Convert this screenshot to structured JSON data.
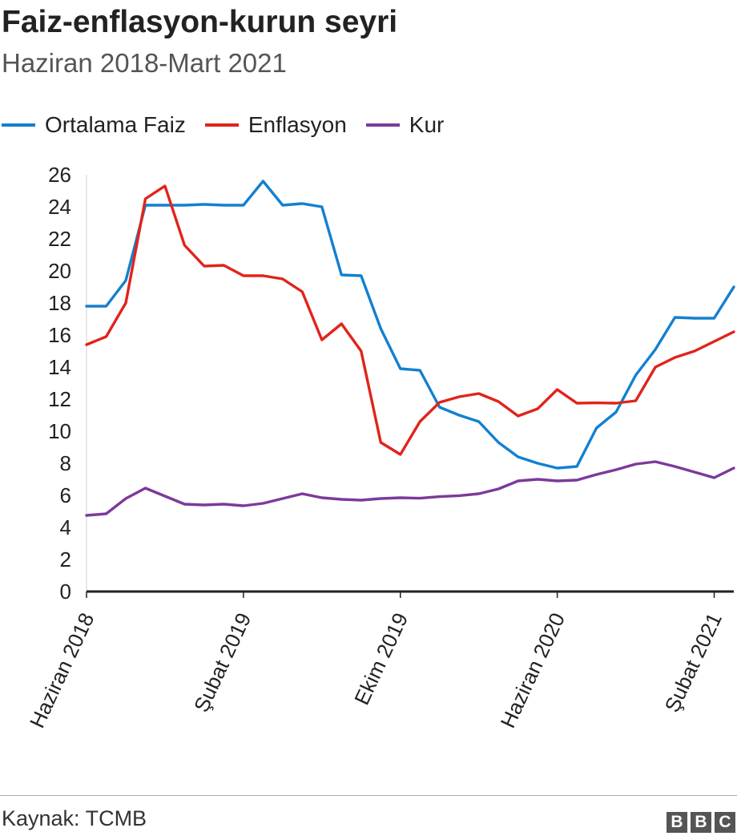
{
  "chart_data": {
    "type": "line",
    "title": "Faiz-enflasyon-kurun seyri",
    "subtitle": "Haziran 2018-Mart 2021",
    "ylim": [
      0,
      26
    ],
    "yticks": [
      0,
      2,
      4,
      6,
      8,
      10,
      12,
      14,
      16,
      18,
      20,
      22,
      24,
      26
    ],
    "xtick_labels": [
      "Haziran 2018",
      "Şubat 2019",
      "Ekim 2019",
      "Haziran 2020",
      "Şubat 2021"
    ],
    "xtick_indices": [
      0,
      8,
      16,
      24,
      32
    ],
    "x": [
      "Haziran 2018",
      "Temmuz 2018",
      "Ağustos 2018",
      "Eylül 2018",
      "Ekim 2018",
      "Kasım 2018",
      "Aralık 2018",
      "Ocak 2019",
      "Şubat 2019",
      "Mart 2019",
      "Nisan 2019",
      "Mayıs 2019",
      "Haziran 2019",
      "Temmuz 2019",
      "Ağustos 2019",
      "Eylül 2019",
      "Ekim 2019",
      "Kasım 2019",
      "Aralık 2019",
      "Ocak 2020",
      "Şubat 2020",
      "Mart 2020",
      "Nisan 2020",
      "Mayıs 2020",
      "Haziran 2020",
      "Temmuz 2020",
      "Ağustos 2020",
      "Eylül 2020",
      "Ekim 2020",
      "Kasım 2020",
      "Aralık 2020",
      "Ocak 2021",
      "Şubat 2021",
      "Mart 2021"
    ],
    "series": [
      {
        "name": "Ortalama Faiz",
        "color": "#1380d0",
        "values": [
          17.8,
          17.8,
          19.4,
          24.1,
          24.1,
          24.1,
          24.15,
          24.1,
          24.1,
          25.6,
          24.1,
          24.2,
          24.0,
          19.75,
          19.7,
          16.4,
          13.9,
          13.8,
          11.5,
          11.0,
          10.6,
          9.3,
          8.4,
          8.0,
          7.7,
          7.8,
          10.2,
          11.2,
          13.5,
          15.1,
          17.1,
          17.05,
          17.05,
          19.0
        ]
      },
      {
        "name": "Enflasyon",
        "color": "#e0241b",
        "values": [
          15.4,
          15.9,
          18.0,
          24.5,
          25.3,
          21.6,
          20.3,
          20.35,
          19.7,
          19.7,
          19.5,
          18.7,
          15.7,
          16.7,
          15.0,
          9.3,
          8.55,
          10.6,
          11.8,
          12.15,
          12.35,
          11.85,
          10.95,
          11.4,
          12.6,
          11.75,
          11.77,
          11.75,
          11.9,
          14.0,
          14.6,
          15.0,
          15.6,
          16.2
        ]
      },
      {
        "name": "Kur",
        "color": "#7c3a9a",
        "values": [
          4.75,
          4.85,
          5.8,
          6.45,
          5.95,
          5.45,
          5.4,
          5.45,
          5.35,
          5.5,
          5.8,
          6.1,
          5.85,
          5.75,
          5.7,
          5.8,
          5.85,
          5.82,
          5.92,
          5.98,
          6.1,
          6.4,
          6.9,
          7.0,
          6.9,
          6.95,
          7.3,
          7.6,
          7.95,
          8.1,
          7.8,
          7.45,
          7.1,
          7.7
        ]
      }
    ]
  },
  "footer": {
    "source": "Kaynak: TCMB",
    "logo_letters": [
      "B",
      "B",
      "C"
    ]
  }
}
